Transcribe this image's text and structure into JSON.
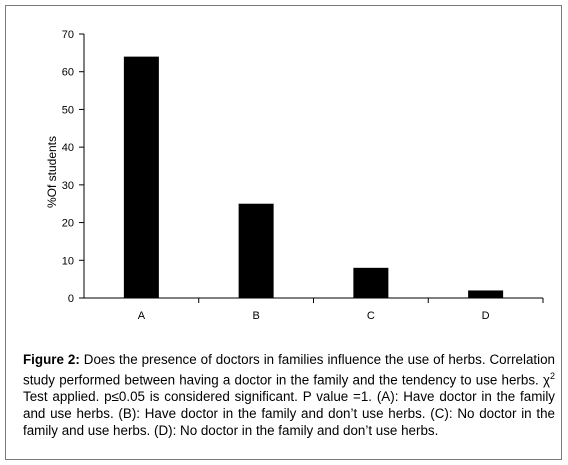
{
  "chart_data": {
    "type": "bar",
    "categories": [
      "A",
      "B",
      "C",
      "D"
    ],
    "values": [
      64,
      25,
      8,
      2
    ],
    "ylabel": "%Of students",
    "xlabel": "",
    "ylim": [
      0,
      70
    ],
    "yticks": [
      "0",
      "10",
      "20",
      "30",
      "40",
      "50",
      "60",
      "70"
    ],
    "grid": false,
    "bar_color": "#000000"
  },
  "caption": {
    "label": "Figure 2:",
    "part1": " Does the presence of doctors in families influence the use of herbs. Correlation study performed between having a doctor in the family and the tendency to use herbs. χ",
    "superscript": "2",
    "part2": " Test applied. p≤0.05 is considered significant. P value =1. (A): Have doctor in the family and use herbs. (B): Have doctor in the family and don’t use herbs. (C): No doctor in the family and use herbs. (D): No doctor in the family and don’t use herbs."
  }
}
